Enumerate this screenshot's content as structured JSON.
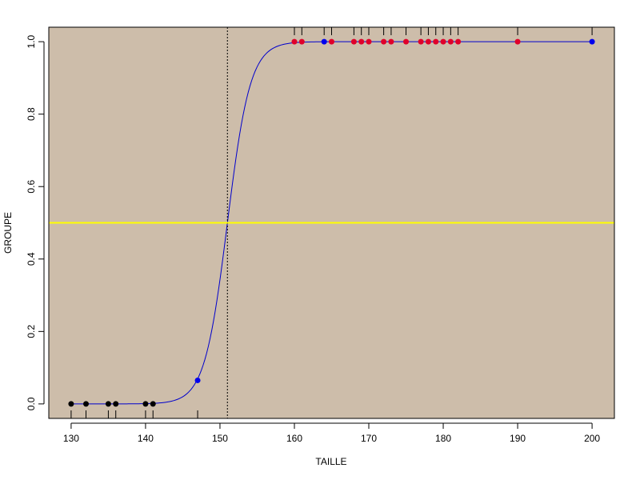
{
  "chart_data": {
    "type": "scatter",
    "title": "",
    "xlabel": "TAILLE",
    "ylabel": "GROUPE",
    "xlim": [
      127,
      203
    ],
    "ylim": [
      -0.04,
      1.04
    ],
    "xticks": [
      130,
      140,
      150,
      160,
      170,
      180,
      190,
      200
    ],
    "yticks": [
      0.0,
      0.2,
      0.4,
      0.6,
      0.8,
      1.0
    ],
    "ytick_labels": [
      "0.0",
      "0.2",
      "0.4",
      "0.6",
      "0.8",
      "1.0"
    ],
    "grid": false,
    "plot_background": "#cdbdaa",
    "threshold_hline": {
      "y": 0.5,
      "color": "#ffff00"
    },
    "threshold_vline": {
      "x": 151,
      "style": "dotted",
      "color": "#000000"
    },
    "curve": {
      "type": "logistic",
      "x0": 151,
      "k": 0.65,
      "color": "#0000cc"
    },
    "series": [
      {
        "color": "#000000",
        "x": [
          130,
          132,
          135,
          136,
          140,
          141
        ],
        "y": [
          0,
          0,
          0,
          0,
          0,
          0
        ]
      },
      {
        "color": "#0000ee",
        "x": [
          147,
          164,
          200
        ],
        "y": [
          0.065,
          1,
          1
        ]
      },
      {
        "color": "#e0002a",
        "x": [
          160,
          161,
          165,
          168,
          169,
          170,
          172,
          173,
          175,
          177,
          178,
          179,
          180,
          181,
          182,
          190
        ],
        "y": [
          1,
          1,
          1,
          1,
          1,
          1,
          1,
          1,
          1,
          1,
          1,
          1,
          1,
          1,
          1,
          1
        ]
      }
    ],
    "rug_top_x": [
      160,
      161,
      164,
      165,
      168,
      169,
      170,
      172,
      173,
      175,
      177,
      178,
      179,
      180,
      181,
      182,
      190,
      200
    ],
    "rug_bottom_x": [
      130,
      132,
      135,
      136,
      140,
      141,
      147
    ]
  }
}
